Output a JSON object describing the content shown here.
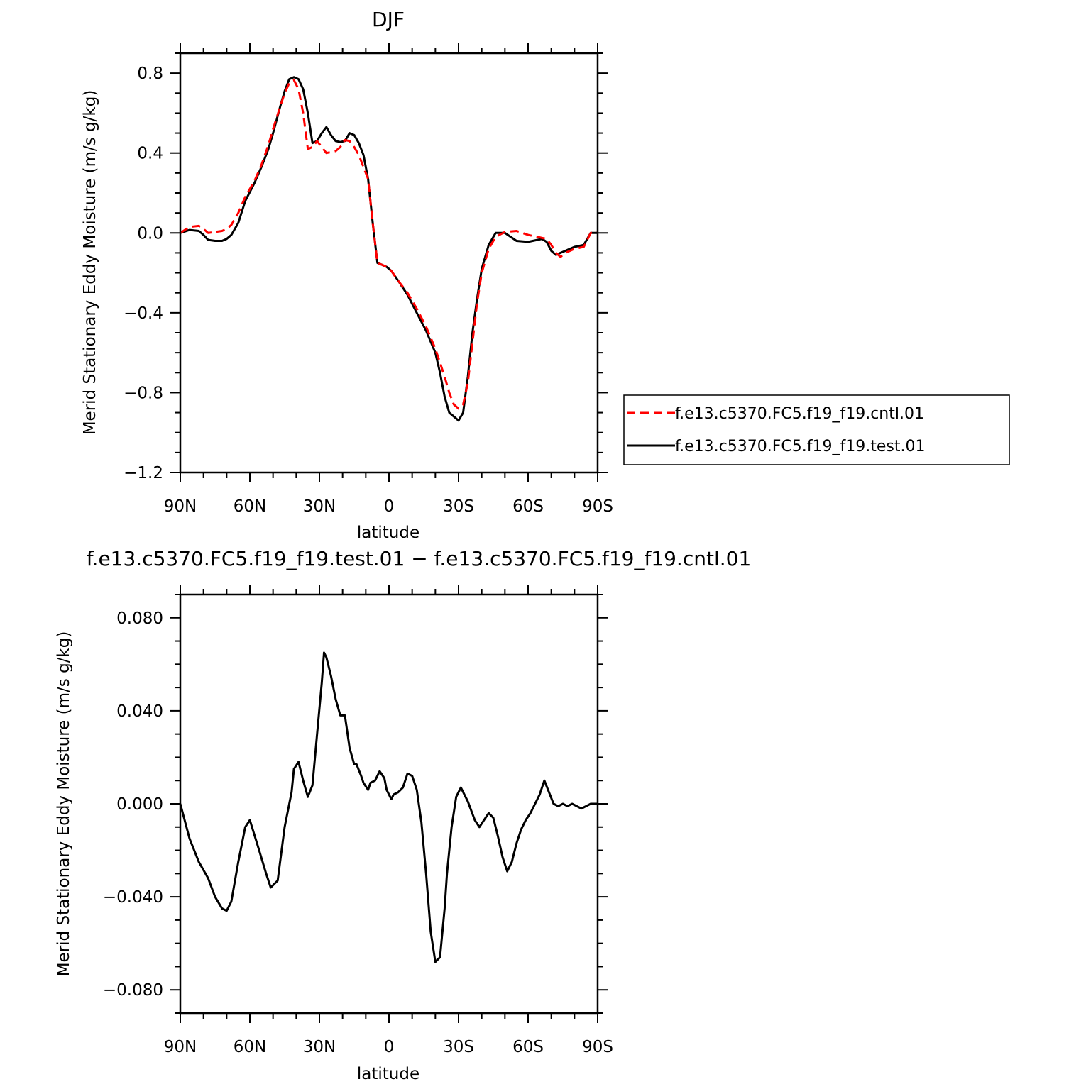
{
  "chart_data": [
    {
      "type": "line",
      "title": "DJF",
      "xlabel": "latitude",
      "ylabel": "Merid Stationary Eddy Moisture (m/s g/kg)",
      "x_ticks": [
        "90N",
        "60N",
        "30N",
        "0",
        "30S",
        "60S",
        "90S"
      ],
      "y_ticks": [
        "0.8",
        "0.4",
        "0.0",
        "−0.4",
        "−0.8",
        "−1.2"
      ],
      "xlim": [
        90,
        -90
      ],
      "ylim": [
        -1.2,
        0.9
      ],
      "legend_position": "right",
      "series": [
        {
          "name": "f.e13.c5370.FC5.f19_f19.cntl.01",
          "color": "#ff0000",
          "dash": "dashed",
          "x": [
            90,
            86,
            82,
            80,
            78,
            75,
            72,
            70,
            68,
            65,
            62,
            58,
            55,
            52,
            50,
            47,
            45,
            43,
            41,
            39,
            37,
            35,
            33,
            31,
            29,
            27,
            25,
            23,
            21,
            19,
            17,
            15,
            13,
            11,
            9,
            7,
            5,
            3,
            1,
            -1,
            -4,
            -8,
            -12,
            -16,
            -20,
            -22,
            -24,
            -26,
            -28,
            -30,
            -32,
            -34,
            -36,
            -38,
            -40,
            -43,
            -46,
            -50,
            -55,
            -60,
            -64,
            -66,
            -68,
            -70,
            -72,
            -74,
            -76,
            -78,
            -80,
            -84,
            -87,
            -90
          ],
          "y": [
            0.0,
            0.03,
            0.035,
            0.02,
            0.0,
            0.005,
            0.01,
            0.02,
            0.04,
            0.1,
            0.18,
            0.26,
            0.34,
            0.44,
            0.52,
            0.63,
            0.7,
            0.75,
            0.765,
            0.72,
            0.6,
            0.42,
            0.43,
            0.46,
            0.43,
            0.4,
            0.405,
            0.41,
            0.43,
            0.465,
            0.46,
            0.43,
            0.39,
            0.33,
            0.27,
            0.05,
            -0.15,
            -0.16,
            -0.17,
            -0.19,
            -0.24,
            -0.3,
            -0.38,
            -0.47,
            -0.58,
            -0.65,
            -0.72,
            -0.8,
            -0.86,
            -0.88,
            -0.86,
            -0.75,
            -0.55,
            -0.35,
            -0.2,
            -0.08,
            -0.02,
            0.005,
            0.01,
            -0.01,
            -0.02,
            -0.025,
            -0.03,
            -0.06,
            -0.1,
            -0.12,
            -0.1,
            -0.09,
            -0.08,
            -0.07,
            0.0,
            0.005
          ]
        },
        {
          "name": "f.e13.c5370.FC5.f19_f19.test.01",
          "color": "#000000",
          "dash": "solid",
          "x": [
            90,
            86,
            82,
            80,
            78,
            75,
            72,
            70,
            68,
            65,
            62,
            58,
            55,
            52,
            50,
            47,
            45,
            43,
            41,
            39,
            37,
            35,
            33,
            31,
            29,
            27,
            25,
            23,
            21,
            19,
            17,
            15,
            13,
            11,
            9,
            7,
            5,
            3,
            1,
            -1,
            -4,
            -8,
            -12,
            -16,
            -20,
            -22,
            -24,
            -26,
            -28,
            -30,
            -32,
            -34,
            -36,
            -38,
            -40,
            -43,
            -46,
            -50,
            -55,
            -60,
            -64,
            -66,
            -68,
            -70,
            -72,
            -74,
            -76,
            -78,
            -80,
            -84,
            -87,
            -90
          ],
          "y": [
            0.0,
            0.015,
            0.01,
            -0.01,
            -0.035,
            -0.04,
            -0.04,
            -0.03,
            -0.01,
            0.05,
            0.16,
            0.25,
            0.33,
            0.42,
            0.5,
            0.63,
            0.71,
            0.77,
            0.78,
            0.77,
            0.72,
            0.6,
            0.45,
            0.46,
            0.5,
            0.53,
            0.49,
            0.46,
            0.455,
            0.46,
            0.5,
            0.49,
            0.45,
            0.39,
            0.27,
            0.05,
            -0.15,
            -0.16,
            -0.17,
            -0.19,
            -0.24,
            -0.31,
            -0.4,
            -0.49,
            -0.6,
            -0.7,
            -0.82,
            -0.9,
            -0.92,
            -0.94,
            -0.9,
            -0.72,
            -0.5,
            -0.33,
            -0.18,
            -0.06,
            0.0,
            0.0,
            -0.04,
            -0.045,
            -0.035,
            -0.03,
            -0.045,
            -0.09,
            -0.11,
            -0.1,
            -0.09,
            -0.08,
            -0.07,
            -0.06,
            0.0,
            0.0
          ]
        }
      ]
    },
    {
      "type": "line",
      "title": "f.e13.c5370.FC5.f19_f19.test.01 − f.e13.c5370.FC5.f19_f19.cntl.01",
      "xlabel": "latitude",
      "ylabel": "Merid Stationary Eddy Moisture (m/s g/kg)",
      "x_ticks": [
        "90N",
        "60N",
        "30N",
        "0",
        "30S",
        "60S",
        "90S"
      ],
      "y_ticks": [
        "0.080",
        "0.040",
        "0.000",
        "−0.040",
        "−0.080"
      ],
      "xlim": [
        90,
        -90
      ],
      "ylim": [
        -0.09,
        0.09
      ],
      "series": [
        {
          "color": "#000000",
          "dash": "solid",
          "x": [
            90,
            86,
            82,
            78,
            75,
            72,
            70,
            68,
            65,
            62,
            60,
            56,
            53,
            51,
            48,
            45,
            42,
            41,
            39,
            37,
            35,
            33,
            31,
            29,
            28,
            27,
            25,
            23,
            21,
            19,
            17,
            15,
            14,
            12,
            11,
            9,
            8,
            6,
            4,
            2,
            1,
            -1,
            -2,
            -4,
            -6,
            -8,
            -10,
            -12,
            -14,
            -16,
            -18,
            -20,
            -22,
            -24,
            -25,
            -27,
            -29,
            -31,
            -34,
            -37,
            -39,
            -41,
            -43,
            -45,
            -47,
            -49,
            -51,
            -53,
            -55,
            -57,
            -59,
            -61,
            -63,
            -65,
            -67,
            -69,
            -71,
            -73,
            -75,
            -77,
            -79,
            -81,
            -83,
            -85,
            -87,
            -90
          ],
          "y": [
            0.0,
            -0.015,
            -0.025,
            -0.032,
            -0.04,
            -0.045,
            -0.046,
            -0.042,
            -0.025,
            -0.01,
            -0.007,
            -0.02,
            -0.03,
            -0.036,
            -0.033,
            -0.01,
            0.005,
            0.015,
            0.018,
            0.01,
            0.003,
            0.008,
            0.03,
            0.052,
            0.065,
            0.063,
            0.055,
            0.045,
            0.038,
            0.038,
            0.024,
            0.017,
            0.017,
            0.012,
            0.009,
            0.006,
            0.009,
            0.01,
            0.014,
            0.011,
            0.006,
            0.002,
            0.004,
            0.005,
            0.007,
            0.013,
            0.012,
            0.006,
            -0.008,
            -0.03,
            -0.055,
            -0.068,
            -0.066,
            -0.045,
            -0.03,
            -0.01,
            0.003,
            0.007,
            0.001,
            -0.007,
            -0.01,
            -0.007,
            -0.004,
            -0.006,
            -0.014,
            -0.023,
            -0.029,
            -0.025,
            -0.017,
            -0.011,
            -0.007,
            -0.004,
            0.0,
            0.004,
            0.01,
            0.005,
            0.0,
            -0.001,
            0.0,
            -0.001,
            0.0,
            -0.001,
            -0.002,
            -0.001,
            0.0,
            0.0
          ]
        }
      ]
    }
  ]
}
